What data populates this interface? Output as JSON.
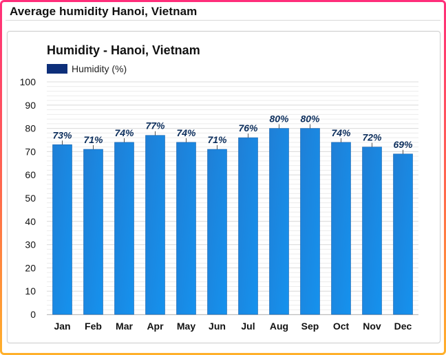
{
  "page": {
    "title": "Average humidity Hanoi, Vietnam"
  },
  "colors": {
    "bar_top": "#1f7fd6",
    "bar_bottom": "#1592ee",
    "bar_stroke": "#1a63ad",
    "legend_swatch": "#0d2f7a",
    "grid": "#dcdcdc",
    "label": "#0c2e5c"
  },
  "chart_data": {
    "type": "bar",
    "title": "Humidity - Hanoi, Vietnam",
    "legend": [
      "Humidity (%)"
    ],
    "categories": [
      "Jan",
      "Feb",
      "Mar",
      "Apr",
      "May",
      "Jun",
      "Jul",
      "Aug",
      "Sep",
      "Oct",
      "Nov",
      "Dec"
    ],
    "series": [
      {
        "name": "Humidity (%)",
        "values": [
          73,
          71,
          74,
          77,
          74,
          71,
          76,
          80,
          80,
          74,
          72,
          69
        ]
      }
    ],
    "data_labels": [
      "73%",
      "71%",
      "74%",
      "77%",
      "74%",
      "71%",
      "76%",
      "80%",
      "80%",
      "74%",
      "72%",
      "69%"
    ],
    "yticks": [
      0,
      10,
      20,
      30,
      40,
      50,
      60,
      70,
      80,
      90,
      100
    ],
    "ylim": [
      0,
      100
    ],
    "xlabel": "",
    "ylabel": ""
  }
}
